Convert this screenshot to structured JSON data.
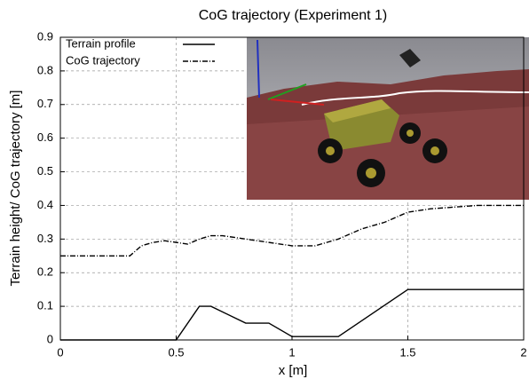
{
  "chart_data": {
    "type": "line",
    "title": "CoG trajectory (Experiment 1)",
    "x_label": "x [m]",
    "y_label": "Terrain height/ CoG trajectory [m]",
    "xlim": [
      0,
      2
    ],
    "xticks": [
      0,
      0.5,
      1,
      1.5,
      2
    ],
    "ylim": [
      0,
      0.9
    ],
    "yticks": [
      0,
      0.1,
      0.2,
      0.3,
      0.4,
      0.5,
      0.6,
      0.7,
      0.8,
      0.9
    ],
    "grid": true,
    "legend": "upper left",
    "series": [
      {
        "name": "Terrain profile",
        "color": "#000000",
        "linestyle": "solid",
        "x": [
          0,
          0.5,
          0.6,
          0.65,
          0.8,
          0.9,
          1.0,
          1.2,
          1.5,
          2
        ],
        "values": [
          0,
          0,
          0.1,
          0.1,
          0.05,
          0.05,
          0.01,
          0.01,
          0.15,
          0.15
        ]
      },
      {
        "name": "CoG trajectory",
        "color": "#000000",
        "linestyle": "dashdot",
        "x": [
          0,
          0.3,
          0.35,
          0.4,
          0.45,
          0.5,
          0.55,
          0.6,
          0.65,
          0.7,
          0.8,
          0.9,
          1.0,
          1.1,
          1.2,
          1.3,
          1.4,
          1.5,
          1.6,
          1.7,
          1.8,
          2
        ],
        "values": [
          0.25,
          0.25,
          0.28,
          0.29,
          0.295,
          0.29,
          0.285,
          0.3,
          0.31,
          0.31,
          0.3,
          0.29,
          0.28,
          0.28,
          0.3,
          0.33,
          0.35,
          0.38,
          0.39,
          0.395,
          0.4,
          0.4
        ]
      }
    ]
  }
}
